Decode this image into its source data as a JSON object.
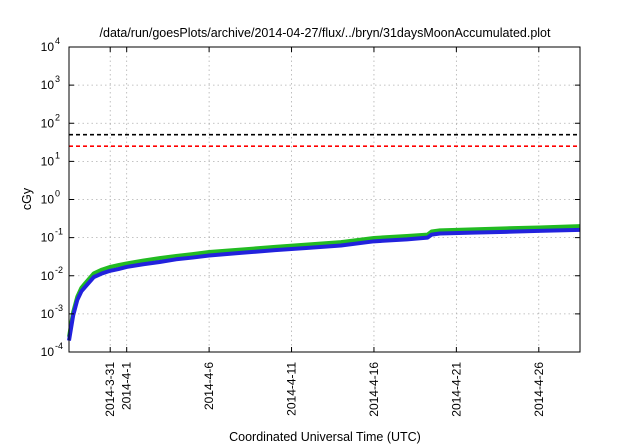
{
  "chart_data": {
    "type": "line",
    "title": "/data/run/goesPlots/archive/2014-04-27/flux/../bryn/31daysMoonAccumulated.plot",
    "xlabel": "Coordinated Universal Time (UTC)",
    "ylabel": "cGy",
    "y_scale": "log",
    "ylim": [
      0.0001,
      10000
    ],
    "y_ticks": [
      {
        "value": 0.0001,
        "base": "10",
        "exp": "-4"
      },
      {
        "value": 0.001,
        "base": "10",
        "exp": "-3"
      },
      {
        "value": 0.01,
        "base": "10",
        "exp": "-2"
      },
      {
        "value": 0.1,
        "base": "10",
        "exp": "-1"
      },
      {
        "value": 1,
        "base": "10",
        "exp": "0"
      },
      {
        "value": 10,
        "base": "10",
        "exp": "1"
      },
      {
        "value": 100,
        "base": "10",
        "exp": "2"
      },
      {
        "value": 1000,
        "base": "10",
        "exp": "3"
      },
      {
        "value": 10000,
        "base": "10",
        "exp": "4"
      }
    ],
    "x_start": "2014-03-28T12:00",
    "x_end": "2014-04-28T12:00",
    "x_ticks": [
      {
        "date": "2014-03-31",
        "label": "2014-3-31"
      },
      {
        "date": "2014-04-01",
        "label": "2014-4-1"
      },
      {
        "date": "2014-04-06",
        "label": "2014-4-6"
      },
      {
        "date": "2014-04-11",
        "label": "2014-4-11"
      },
      {
        "date": "2014-04-16",
        "label": "2014-4-16"
      },
      {
        "date": "2014-04-21",
        "label": "2014-4-21"
      },
      {
        "date": "2014-04-26",
        "label": "2014-4-26"
      }
    ],
    "x_grid_dates": [
      "2014-03-31",
      "2014-04-01",
      "2014-04-06",
      "2014-04-11",
      "2014-04-16",
      "2014-04-21",
      "2014-04-26"
    ],
    "grid": true,
    "thresholds": [
      {
        "value": 50,
        "color": "#000000",
        "style": "dashed"
      },
      {
        "value": 25,
        "color": "#ff0000",
        "style": "dashed"
      }
    ],
    "series": [
      {
        "color": "#22bb22",
        "x": [
          "2014-03-28T12:00",
          "2014-03-28T18:00",
          "2014-03-29T00:00",
          "2014-03-29T06:00",
          "2014-03-29T12:00",
          "2014-03-30T00:00",
          "2014-03-30T12:00",
          "2014-03-31T00:00",
          "2014-03-31T12:00",
          "2014-04-01T00:00",
          "2014-04-02T00:00",
          "2014-04-03T00:00",
          "2014-04-04T00:00",
          "2014-04-05T00:00",
          "2014-04-06T00:00",
          "2014-04-08T00:00",
          "2014-04-10T00:00",
          "2014-04-12T00:00",
          "2014-04-14T00:00",
          "2014-04-16T00:00",
          "2014-04-18T00:00",
          "2014-04-19T06:00",
          "2014-04-19T12:00",
          "2014-04-20T00:00",
          "2014-04-22T00:00",
          "2014-04-24T00:00",
          "2014-04-26T00:00",
          "2014-04-28T12:00"
        ],
        "y": [
          0.00025,
          0.0011,
          0.0028,
          0.0048,
          0.0065,
          0.0115,
          0.0145,
          0.017,
          0.019,
          0.021,
          0.025,
          0.029,
          0.033,
          0.037,
          0.042,
          0.049,
          0.057,
          0.066,
          0.076,
          0.098,
          0.11,
          0.12,
          0.145,
          0.155,
          0.165,
          0.175,
          0.185,
          0.2
        ]
      },
      {
        "color": "#2222dd",
        "x": [
          "2014-03-28T12:00",
          "2014-03-28T18:00",
          "2014-03-29T00:00",
          "2014-03-29T06:00",
          "2014-03-29T12:00",
          "2014-03-30T00:00",
          "2014-03-30T12:00",
          "2014-03-31T00:00",
          "2014-03-31T12:00",
          "2014-04-01T00:00",
          "2014-04-02T00:00",
          "2014-04-03T00:00",
          "2014-04-04T00:00",
          "2014-04-05T00:00",
          "2014-04-06T00:00",
          "2014-04-08T00:00",
          "2014-04-10T00:00",
          "2014-04-12T00:00",
          "2014-04-14T00:00",
          "2014-04-16T00:00",
          "2014-04-18T00:00",
          "2014-04-19T06:00",
          "2014-04-19T12:00",
          "2014-04-20T00:00",
          "2014-04-22T00:00",
          "2014-04-24T00:00",
          "2014-04-26T00:00",
          "2014-04-28T12:00"
        ],
        "y": [
          0.0002,
          0.0009,
          0.0023,
          0.0039,
          0.0052,
          0.0092,
          0.0115,
          0.0135,
          0.015,
          0.017,
          0.02,
          0.023,
          0.027,
          0.03,
          0.034,
          0.04,
          0.047,
          0.054,
          0.062,
          0.08,
          0.09,
          0.1,
          0.12,
          0.128,
          0.135,
          0.142,
          0.15,
          0.16
        ]
      }
    ]
  }
}
